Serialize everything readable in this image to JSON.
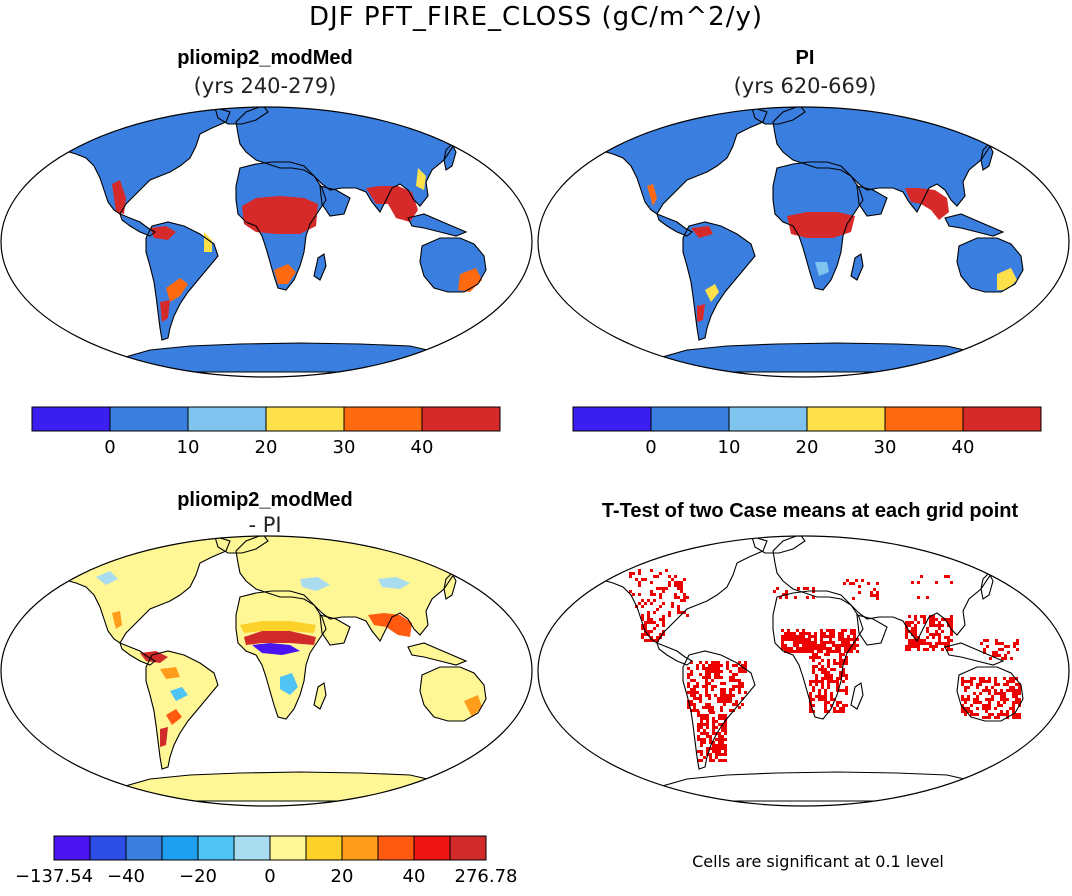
{
  "title": "DJF PFT_FIRE_CLOSS (gC/m^2/y)",
  "panels": {
    "top_left": {
      "title": "pliomip2_modMed",
      "subtitle": "(yrs 240-279)"
    },
    "top_right": {
      "title": "PI",
      "subtitle": "(yrs 620-669)"
    },
    "bottom_left": {
      "title": "pliomip2_modMed",
      "subtitle": "- PI"
    },
    "bottom_right": {
      "title": "T-Test of two Case means at each grid point"
    }
  },
  "colorbar_abs": {
    "colors": [
      "#3b1ff0",
      "#3a7fe0",
      "#7ec4ee",
      "#fde04a",
      "#ff6a10",
      "#d62a2a"
    ],
    "labels": [
      "0",
      "10",
      "20",
      "30",
      "40"
    ]
  },
  "colorbar_diff": {
    "colors": [
      "#4a14f2",
      "#2d4ee6",
      "#3a7fe0",
      "#1f9ff0",
      "#4fc4f5",
      "#a9dcef",
      "#fff696",
      "#fcd22a",
      "#ff9c1a",
      "#ff5a10",
      "#ee1414",
      "#d12a2a"
    ],
    "labels": [
      "-137.54",
      "-40",
      "-20",
      "0",
      "20",
      "40",
      "276.78"
    ]
  },
  "significance_note": "Cells are significant at 0.1 level",
  "palette": {
    "land_base": "#3a7fe0",
    "fire_high": "#d62a2a",
    "fire_mid": "#ff6a10",
    "diff_base": "#fff696",
    "significant": "#ee0000"
  }
}
